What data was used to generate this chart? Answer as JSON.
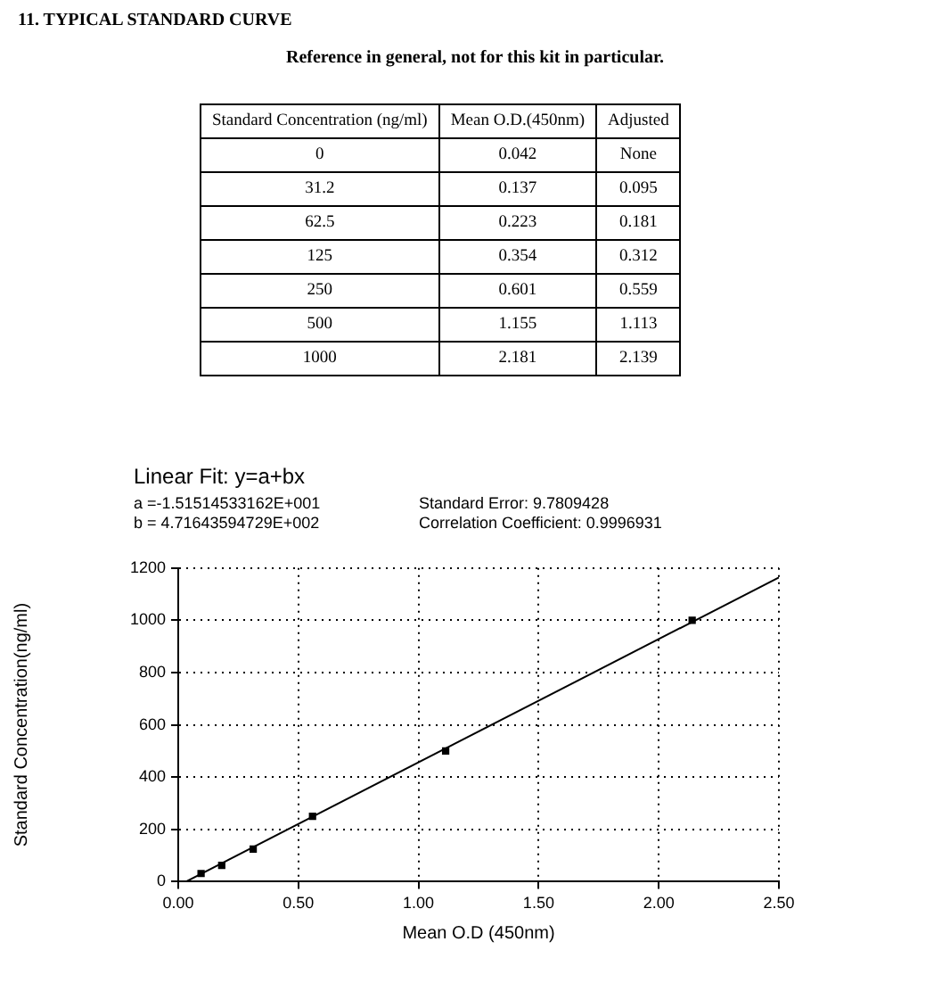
{
  "chart_data": [
    {
      "type": "other",
      "title": "11. TYPICAL STANDARD CURVE",
      "subtitle": "Reference in general, not for this kit in particular.",
      "annotations": [
        "Standard Concentration (ng/ml)",
        "Mean O.D.(450nm)",
        "Adjusted",
        "0",
        "0.042",
        "None",
        "31.2",
        "0.137",
        "0.095",
        "62.5",
        "0.223",
        "0.181",
        "125",
        "0.354",
        "0.312",
        "250",
        "0.601",
        "0.559",
        "500",
        "1.155",
        "1.113",
        "1000",
        "2.181",
        "2.139"
      ]
    },
    {
      "type": "scatter",
      "title": "Linear Fit: y=a+bx",
      "annotations": [
        "a =-1.51514533162E+001",
        "Standard Error: 9.7809428",
        "b = 4.71643594729E+002",
        "Correlation Coefficient: 0.9996931"
      ],
      "xlabel": "Mean O.D (450nm)",
      "ylabel": "Standard Concentration(ng/ml)",
      "series": [
        {
          "color": "#000000",
          "marker": "square",
          "x": [
            0.095,
            0.181,
            0.312,
            0.559,
            1.113,
            2.139
          ],
          "values": [
            31.2,
            62.5,
            125,
            250,
            500,
            1000
          ]
        },
        {
          "type": "line",
          "color": "#000000",
          "x": [
            0.032,
            2.5
          ],
          "values": [
            0,
            1164
          ]
        }
      ],
      "xlim": [
        0,
        2.5
      ],
      "xticks": [
        {
          "value": 0,
          "label": "0.00"
        },
        {
          "value": 0.5,
          "label": "0.50"
        },
        {
          "value": 1,
          "label": "1.00"
        },
        {
          "value": 1.5,
          "label": "1.50"
        },
        {
          "value": 2,
          "label": "2.00"
        },
        {
          "value": 2.5,
          "label": "2.50"
        }
      ],
      "ylim": [
        0,
        1200
      ],
      "yticks": [
        0,
        200,
        400,
        600,
        800,
        1000,
        1200
      ],
      "grid": true,
      "legend": false,
      "line_style": "solid"
    }
  ]
}
